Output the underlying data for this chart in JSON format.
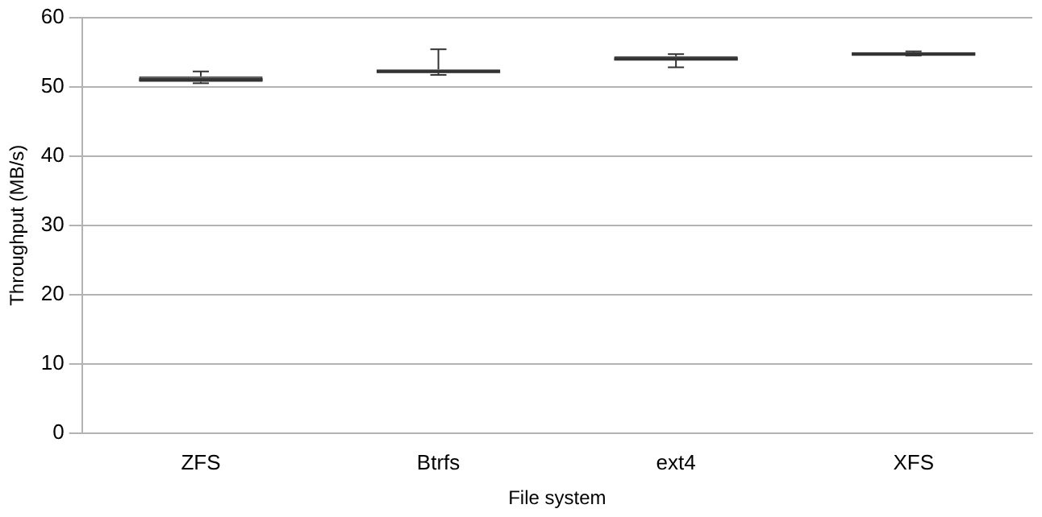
{
  "chart_data": {
    "type": "box",
    "xlabel": "File system",
    "ylabel": "Throughput (MB/s)",
    "categories": [
      "ZFS",
      "Btrfs",
      "ext4",
      "XFS"
    ],
    "boxes": [
      {
        "low": 50.5,
        "q1": 50.7,
        "median": 51,
        "q3": 51.5,
        "high": 52.2
      },
      {
        "low": 51.7,
        "q1": 52,
        "median": 52.2,
        "q3": 52.5,
        "high": 55.4
      },
      {
        "low": 52.8,
        "q1": 53.8,
        "median": 54,
        "q3": 54.4,
        "high": 54.7
      },
      {
        "low": 54.5,
        "q1": 54.5,
        "median": 54.7,
        "q3": 55,
        "high": 55.1
      }
    ],
    "color": "#4d4d4d",
    "ylim": [
      0,
      60
    ],
    "yticks": [
      0,
      10,
      20,
      30,
      40,
      50,
      60
    ],
    "grid": "y",
    "legend": false
  }
}
